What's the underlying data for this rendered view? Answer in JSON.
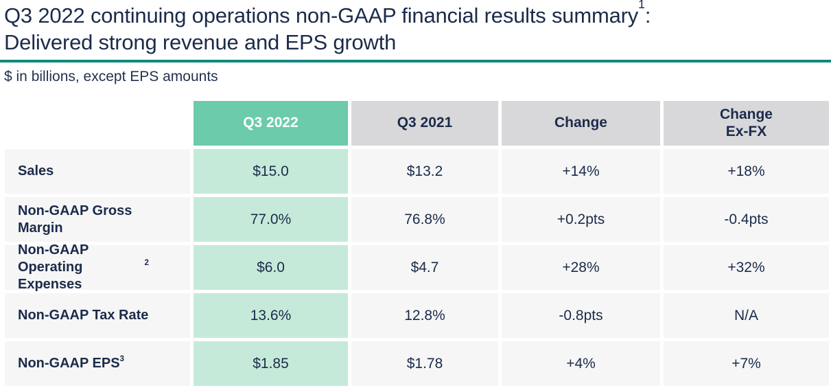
{
  "slide": {
    "title_line1": "Q3 2022 continuing operations non-GAAP financial results summary",
    "title_footnote_marker": "1",
    "title_line1_suffix": ":",
    "title_line2": "Delivered strong revenue and EPS growth",
    "subtitle": "$ in billions, except EPS amounts"
  },
  "table": {
    "header": {
      "q3_2022": "Q3 2022",
      "q3_2021": "Q3 2021",
      "change": "Change",
      "change_exfx": "Change\nEx-FX"
    },
    "rows": [
      {
        "label": "Sales",
        "sup": "",
        "q3_2022": "$15.0",
        "q3_2021": "$13.2",
        "change": "+14%",
        "change_exfx": "+18%"
      },
      {
        "label": "Non-GAAP Gross Margin",
        "sup": "",
        "q3_2022": "77.0%",
        "q3_2021": "76.8%",
        "change": "+0.2pts",
        "change_exfx": "-0.4pts"
      },
      {
        "label": "Non-GAAP Operating Expenses",
        "sup": "2",
        "q3_2022": "$6.0",
        "q3_2021": "$4.7",
        "change": "+28%",
        "change_exfx": "+32%"
      },
      {
        "label": "Non-GAAP Tax Rate",
        "sup": "",
        "q3_2022": "13.6%",
        "q3_2021": "12.8%",
        "change": "-0.8pts",
        "change_exfx": "N/A"
      },
      {
        "label": "Non-GAAP EPS",
        "sup": "3",
        "q3_2022": "$1.85",
        "q3_2021": "$1.78",
        "change": "+4%",
        "change_exfx": "+7%"
      }
    ]
  },
  "colors": {
    "navy_text": "#1b2b4a",
    "accent_green_header": "#6bcbaa",
    "mint_cell": "#c5ead9",
    "gray_header": "#d8d8da",
    "light_gray_cell": "#f6f6f6",
    "teal_divider": "#11897e",
    "header_text_on_green": "#ffffff"
  },
  "chart_data": {
    "type": "table",
    "title": "Q3 2022 continuing operations non-GAAP financial results summary: Delivered strong revenue and EPS growth",
    "subtitle": "$ in billions, except EPS amounts",
    "columns": [
      "",
      "Q3 2022",
      "Q3 2021",
      "Change",
      "Change Ex-FX"
    ],
    "rows": [
      [
        "Sales",
        "$15.0",
        "$13.2",
        "+14%",
        "+18%"
      ],
      [
        "Non-GAAP Gross Margin",
        "77.0%",
        "76.8%",
        "+0.2pts",
        "-0.4pts"
      ],
      [
        "Non-GAAP Operating Expenses",
        "$6.0",
        "$4.7",
        "+28%",
        "+32%"
      ],
      [
        "Non-GAAP Tax Rate",
        "13.6%",
        "12.8%",
        "-0.8pts",
        "N/A"
      ],
      [
        "Non-GAAP EPS",
        "$1.85",
        "$1.78",
        "+4%",
        "+7%"
      ]
    ],
    "footnote_markers": {
      "title": "1",
      "Non-GAAP Operating Expenses": "2",
      "Non-GAAP EPS": "3"
    }
  }
}
